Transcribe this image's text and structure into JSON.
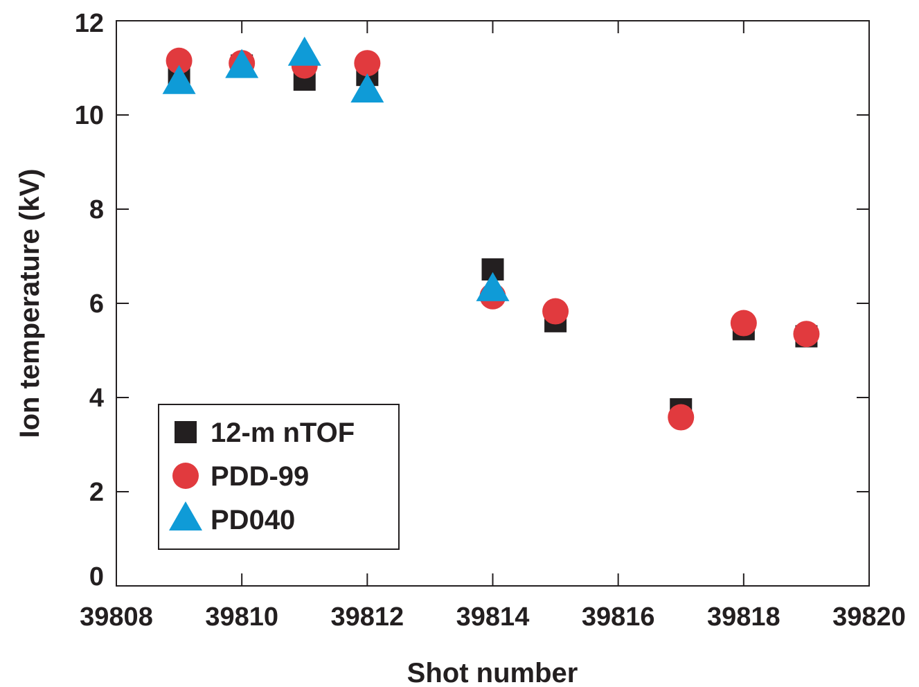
{
  "chart_data": {
    "type": "scatter",
    "title": "",
    "xlabel": "Shot number",
    "ylabel": "Ion temperature (kV)",
    "xlim": [
      39808,
      39820
    ],
    "ylim": [
      0,
      12
    ],
    "xticks": [
      39808,
      39810,
      39812,
      39814,
      39816,
      39818,
      39820
    ],
    "yticks": [
      0,
      2,
      4,
      6,
      8,
      10,
      12
    ],
    "grid": false,
    "legend_position": "bottom-left",
    "series": [
      {
        "name": "12-m nTOF",
        "marker": "square",
        "color": "#231f20",
        "points": [
          {
            "x": 39809,
            "y": 10.85
          },
          {
            "x": 39810,
            "y": 11.05
          },
          {
            "x": 39811,
            "y": 10.75
          },
          {
            "x": 39812,
            "y": 10.85
          },
          {
            "x": 39814,
            "y": 6.72
          },
          {
            "x": 39815,
            "y": 5.62
          },
          {
            "x": 39817,
            "y": 3.75
          },
          {
            "x": 39818,
            "y": 5.45
          },
          {
            "x": 39819,
            "y": 5.3
          }
        ]
      },
      {
        "name": "PDD-99",
        "marker": "circle",
        "color": "#e13a3e",
        "points": [
          {
            "x": 39809,
            "y": 11.15
          },
          {
            "x": 39810,
            "y": 11.1
          },
          {
            "x": 39811,
            "y": 11.05
          },
          {
            "x": 39812,
            "y": 11.1
          },
          {
            "x": 39814,
            "y": 6.15
          },
          {
            "x": 39815,
            "y": 5.83
          },
          {
            "x": 39817,
            "y": 3.58
          },
          {
            "x": 39818,
            "y": 5.58
          },
          {
            "x": 39819,
            "y": 5.35
          }
        ]
      },
      {
        "name": "PD040",
        "marker": "triangle",
        "color": "#0f9bd7",
        "points": [
          {
            "x": 39809,
            "y": 10.68
          },
          {
            "x": 39810,
            "y": 11.02
          },
          {
            "x": 39811,
            "y": 11.28
          },
          {
            "x": 39812,
            "y": 10.5
          },
          {
            "x": 39814,
            "y": 6.28
          }
        ]
      }
    ]
  }
}
